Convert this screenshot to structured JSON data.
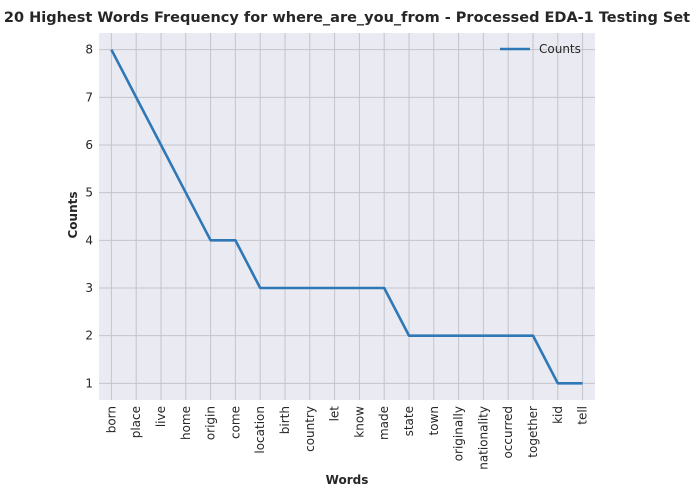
{
  "chart_data": {
    "type": "line",
    "title": "20 Highest Words Frequency for where_are_you_from - Processed EDA-1 Testing Set",
    "xlabel": "Words",
    "ylabel": "Counts",
    "categories": [
      "born",
      "place",
      "live",
      "home",
      "origin",
      "come",
      "location",
      "birth",
      "country",
      "let",
      "know",
      "made",
      "state",
      "town",
      "originally",
      "nationality",
      "occurred",
      "together",
      "kid",
      "tell"
    ],
    "series": [
      {
        "name": "Counts",
        "values": [
          8,
          7,
          6,
          5,
          4,
          4,
          3,
          3,
          3,
          3,
          3,
          3,
          2,
          2,
          2,
          2,
          2,
          2,
          1,
          1
        ],
        "color": "#2f78b7"
      }
    ],
    "yticks": [
      1,
      2,
      3,
      4,
      5,
      6,
      7,
      8
    ],
    "ylim": [
      0.65,
      8.35
    ],
    "grid": true,
    "legend_position": "top-right",
    "background": "#eaeaf2",
    "grid_color": "#c4c4cc"
  }
}
